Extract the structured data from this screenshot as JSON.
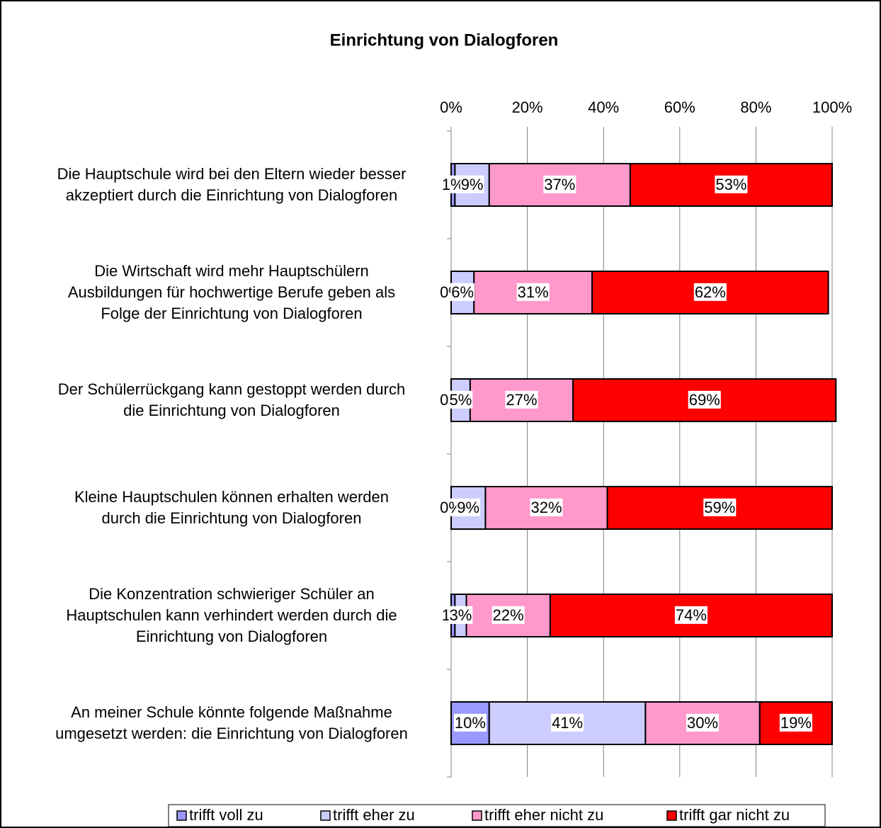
{
  "chart_data": {
    "type": "stacked-barh",
    "title": "Einrichtung von Dialogforen",
    "categories": [
      [
        "Die Hauptschule wird bei den Eltern wieder besser",
        "akzeptiert durch die Einrichtung von Dialogforen"
      ],
      [
        "Die Wirtschaft wird mehr Hauptschülern",
        "Ausbildungen für hochwertige Berufe geben als",
        "Folge der Einrichtung von Dialogforen"
      ],
      [
        "Der Schülerrückgang kann gestoppt werden durch",
        "die Einrichtung von Dialogforen"
      ],
      [
        "Kleine Hauptschulen können erhalten werden",
        "durch die Einrichtung von Dialogforen"
      ],
      [
        "Die Konzentration schwieriger Schüler an",
        "Hauptschulen kann verhindert werden durch die",
        "Einrichtung von Dialogforen"
      ],
      [
        "An meiner Schule könnte folgende Maßnahme",
        "umgesetzt werden: die Einrichtung von Dialogforen"
      ]
    ],
    "series": [
      {
        "name": "trifft voll zu",
        "color": "#9999ff",
        "values": [
          1,
          0,
          0,
          0,
          1,
          10
        ],
        "value_labels": [
          "1%",
          "0%",
          "0%",
          "0%",
          "1%",
          "10%"
        ]
      },
      {
        "name": "trifft eher zu",
        "color": "#ccccff",
        "values": [
          9,
          6,
          5,
          9,
          3,
          41
        ],
        "value_labels": [
          "9%",
          "6%",
          "5%",
          "9%",
          "3%",
          "41%"
        ]
      },
      {
        "name": "trifft eher nicht zu",
        "color": "#ff99cc",
        "values": [
          37,
          31,
          27,
          32,
          22,
          30
        ],
        "value_labels": [
          "37%",
          "31%",
          "27%",
          "32%",
          "22%",
          "30%"
        ]
      },
      {
        "name": "trifft gar nicht zu",
        "color": "#ff0000",
        "values": [
          53,
          62,
          69,
          59,
          74,
          19
        ],
        "value_labels": [
          "53%",
          "62%",
          "69%",
          "59%",
          "74%",
          "19%"
        ]
      }
    ],
    "xlim": [
      0,
      100
    ],
    "xticks": [
      {
        "value": 0,
        "label": "0%"
      },
      {
        "value": 20,
        "label": "20%"
      },
      {
        "value": 40,
        "label": "40%"
      },
      {
        "value": 60,
        "label": "60%"
      },
      {
        "value": 80,
        "label": "80%"
      },
      {
        "value": 100,
        "label": "100%"
      }
    ],
    "grid": true,
    "legend": "bottom"
  }
}
